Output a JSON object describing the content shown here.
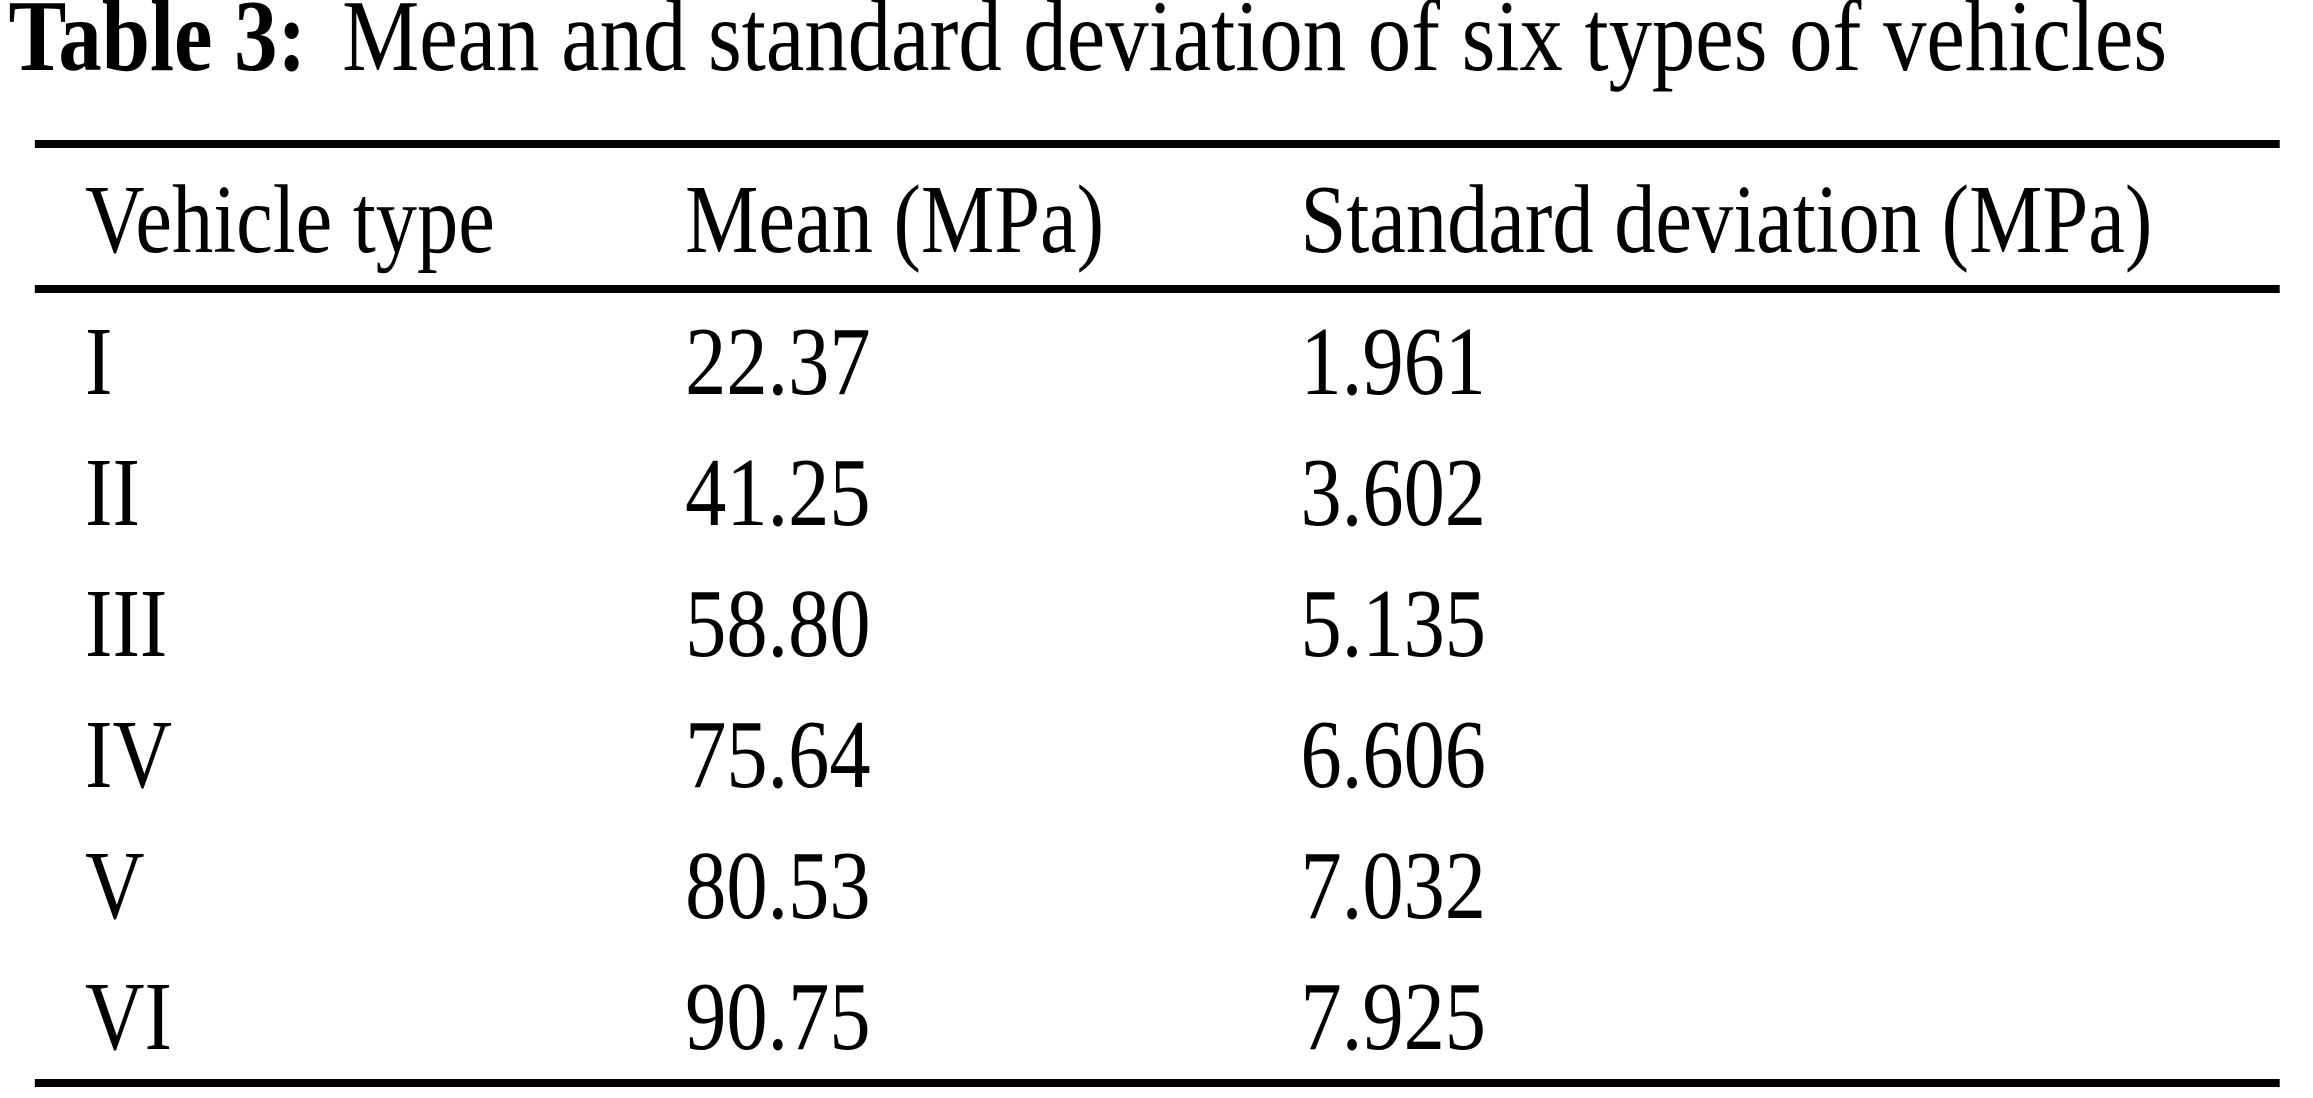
{
  "caption": {
    "label": "Table 3:",
    "text": "Mean and standard deviation of six types of vehicles"
  },
  "table": {
    "columns": [
      "Vehicle type",
      "Mean (MPa)",
      "Standard deviation (MPa)"
    ],
    "rows": [
      {
        "vehicle_type": "I",
        "mean": "22.37",
        "std": "1.961"
      },
      {
        "vehicle_type": "II",
        "mean": "41.25",
        "std": "3.602"
      },
      {
        "vehicle_type": "III",
        "mean": "58.80",
        "std": "5.135"
      },
      {
        "vehicle_type": "IV",
        "mean": "75.64",
        "std": "6.606"
      },
      {
        "vehicle_type": "V",
        "mean": "80.53",
        "std": "7.032"
      },
      {
        "vehicle_type": "VI",
        "mean": "90.75",
        "std": "7.925"
      }
    ]
  },
  "chart_data": {
    "type": "table",
    "title": "Table 3: Mean and standard deviation of six types of vehicles",
    "categories": [
      "I",
      "II",
      "III",
      "IV",
      "V",
      "VI"
    ],
    "series": [
      {
        "name": "Mean (MPa)",
        "values": [
          22.37,
          41.25,
          58.8,
          75.64,
          80.53,
          90.75
        ]
      },
      {
        "name": "Standard deviation (MPa)",
        "values": [
          1.961,
          3.602,
          5.135,
          6.606,
          7.032,
          7.925
        ]
      }
    ]
  },
  "colors": {
    "text": "#000000",
    "background": "#ffffff",
    "rule": "#000000"
  }
}
